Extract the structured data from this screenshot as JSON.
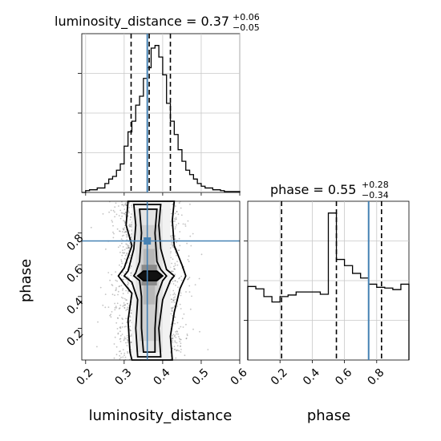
{
  "chart_data": {
    "type": "corner",
    "parameters": [
      "luminosity_distance",
      "phase"
    ],
    "axis_labels": {
      "x1": "luminosity_distance",
      "x2": "phase",
      "y2": "phase"
    },
    "injection_color": "#4682b4",
    "panels": [
      {
        "id": "luminosity_distance_marginal",
        "type": "histogram",
        "title": {
          "prefix": "luminosity_distance = ",
          "median": "0.37",
          "upper": "+0.06",
          "lower": "−0.05"
        },
        "xlim": [
          0.19,
          0.6
        ],
        "bin_edges": [
          0.19,
          0.2,
          0.21,
          0.22,
          0.23,
          0.24,
          0.25,
          0.26,
          0.27,
          0.28,
          0.29,
          0.3,
          0.31,
          0.32,
          0.33,
          0.34,
          0.35,
          0.36,
          0.37,
          0.38,
          0.39,
          0.4,
          0.41,
          0.42,
          0.43,
          0.44,
          0.45,
          0.46,
          0.47,
          0.48,
          0.49,
          0.5,
          0.51,
          0.52,
          0.53,
          0.54,
          0.55,
          0.56,
          0.57,
          0.58,
          0.59,
          0.6
        ],
        "counts": [
          0,
          2,
          3,
          3,
          5,
          5,
          10,
          15,
          18,
          25,
          32,
          52,
          68,
          80,
          98,
          108,
          128,
          140,
          162,
          165,
          152,
          132,
          100,
          80,
          65,
          48,
          35,
          25,
          20,
          15,
          10,
          7,
          5,
          5,
          3,
          3,
          2,
          1,
          1,
          1,
          1
        ],
        "quantile_lines": [
          0.318,
          0.365,
          0.42
        ],
        "injection_value": 0.36
      },
      {
        "id": "phase_marginal",
        "type": "histogram",
        "title": {
          "prefix": "phase = ",
          "median": "0.55",
          "upper": "+0.28",
          "lower": "−0.34"
        },
        "xlim": [
          0.0,
          1.0
        ],
        "xticks": [
          "0.2",
          "0.4",
          "0.6",
          "0.8"
        ],
        "bin_edges": [
          0.0,
          0.05,
          0.1,
          0.15,
          0.2,
          0.25,
          0.3,
          0.35,
          0.4,
          0.45,
          0.5,
          0.55,
          0.6,
          0.65,
          0.7,
          0.75,
          0.8,
          0.85,
          0.9,
          0.95,
          1.0
        ],
        "counts": [
          95,
          92,
          82,
          75,
          82,
          84,
          88,
          88,
          88,
          85,
          190,
          130,
          122,
          112,
          106,
          98,
          94,
          93,
          91,
          98
        ],
        "quantile_lines": [
          0.21,
          0.55,
          0.83
        ],
        "injection_value": 0.75
      },
      {
        "id": "luminosity_distance_vs_phase",
        "type": "2d-density",
        "x_param": "luminosity_distance",
        "y_param": "phase",
        "xlim": [
          0.19,
          0.6
        ],
        "ylim": [
          0.0,
          1.0
        ],
        "xticks": [
          "0.2",
          "0.3",
          "0.4",
          "0.5",
          "0.6"
        ],
        "yticks": [
          "0.2",
          "0.4",
          "0.6",
          "0.8"
        ],
        "injection": {
          "x": 0.36,
          "y": 0.75
        },
        "posterior_peak": {
          "x": 0.36,
          "y": 0.53
        },
        "contour_levels": [
          "inner",
          "mid",
          "outer",
          "outermost"
        ]
      }
    ],
    "grid": true
  }
}
